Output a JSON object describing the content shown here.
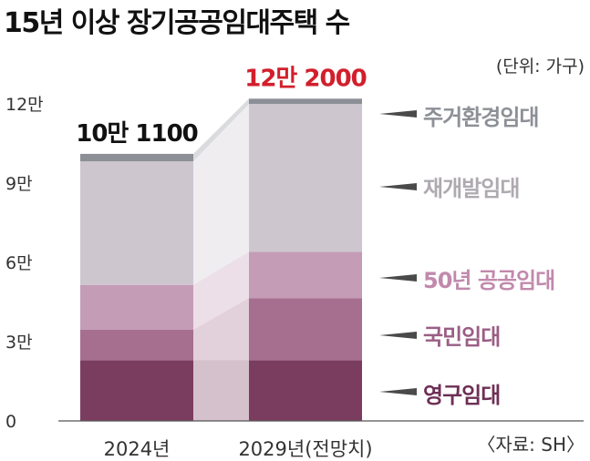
{
  "title": "15년 이상 장기공공임대주택 수",
  "unit": "(단위: 가구)",
  "source": "〈자료: SH〉",
  "chart_data": {
    "type": "bar",
    "stacked": true,
    "categories": [
      "2024년",
      "2029년(전망치)"
    ],
    "totals": [
      "10만 1100",
      "12만 2000"
    ],
    "total_colors": [
      "#111111",
      "#d21f2b"
    ],
    "yticks": [
      {
        "value": 0,
        "label": "0"
      },
      {
        "value": 30000,
        "label": "3만"
      },
      {
        "value": 60000,
        "label": "6만"
      },
      {
        "value": 90000,
        "label": "9만"
      },
      {
        "value": 120000,
        "label": "12만"
      }
    ],
    "ylim": [
      0,
      125000
    ],
    "series": [
      {
        "name": "영구임대",
        "values": [
          23000,
          23000
        ],
        "color": "#7b3d5f",
        "text_color": "#6e2f55"
      },
      {
        "name": "국민임대",
        "values": [
          11500,
          23500
        ],
        "color": "#a66e8f",
        "text_color": "#9a5e84"
      },
      {
        "name": "50년 공공임대",
        "values": [
          17000,
          17500
        ],
        "color": "#c59cb6",
        "text_color": "#c189ac"
      },
      {
        "name": "재개발임대",
        "values": [
          46800,
          56000
        ],
        "color": "#cdc6cf",
        "text_color": "#aeaab0"
      },
      {
        "name": "주거환경임대",
        "values": [
          2800,
          2000
        ],
        "color": "#8c9096",
        "text_color": "#8c9096"
      }
    ]
  }
}
